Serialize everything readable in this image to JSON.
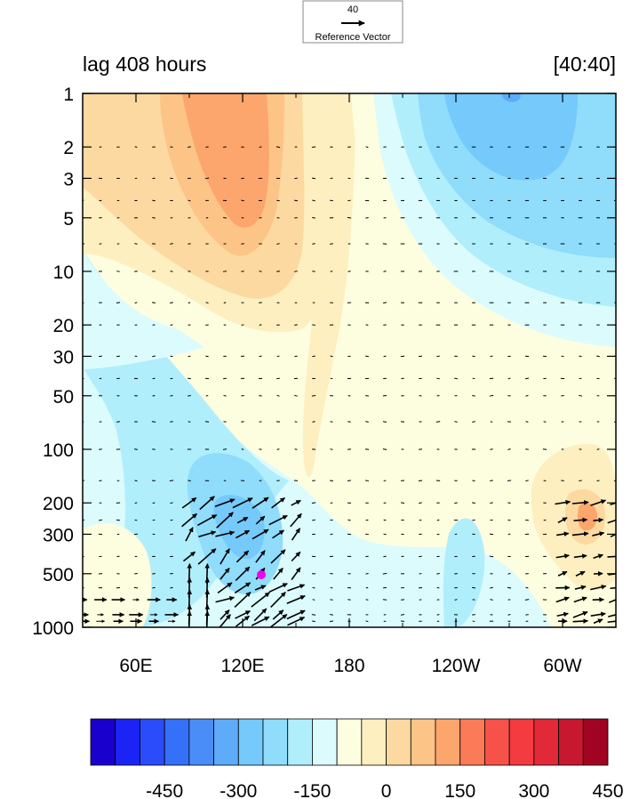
{
  "chart_data": {
    "type": "heatmap",
    "title_left": "lag 408 hours",
    "title_right": "[40:40]",
    "reference_vector": {
      "value": "40",
      "label": "Reference Vector"
    },
    "x_ticks": [
      "60E",
      "120E",
      "180",
      "120W",
      "60W"
    ],
    "y_ticks": [
      "1",
      "2",
      "3",
      "5",
      "10",
      "20",
      "30",
      "50",
      "100",
      "200",
      "300",
      "500",
      "1000"
    ],
    "y_scale": "log",
    "ylim": [
      1000,
      1
    ],
    "colorbar": {
      "levels": [
        "-450",
        "-300",
        "-150",
        "0",
        "150",
        "300",
        "450"
      ],
      "colors": [
        "#1a00cc",
        "#1c24f5",
        "#2b4cfb",
        "#3570f8",
        "#4b8df6",
        "#5eabfa",
        "#75c9fb",
        "#8fdcfb",
        "#b0eefc",
        "#dcfbfd",
        "#fdfde0",
        "#fdefbf",
        "#fcd9a0",
        "#fdc487",
        "#fca56d",
        "#fb7b58",
        "#f7524a",
        "#f43b3f",
        "#e22938",
        "#c8182f",
        "#a00422"
      ]
    },
    "marker": {
      "color": "#ee00ee"
    }
  }
}
